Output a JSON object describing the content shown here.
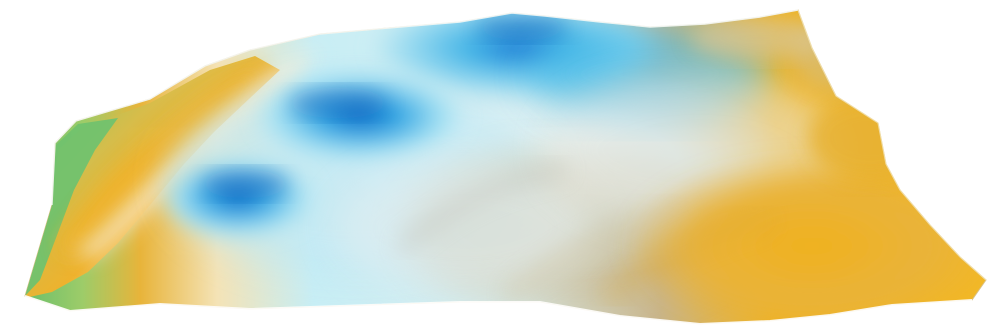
{
  "image": {
    "kind": "3D terrain surface render",
    "palette": {
      "background": "#ffffff",
      "low_green": "#6bbf6a",
      "mid_yellow": "#e8b43a",
      "gold": "#f0b21e",
      "tan": "#c9b58a",
      "pale_cyan": "#c8eef5",
      "sky_blue": "#42b4e6",
      "deep_blue": "#1e72d2",
      "shadow_blue": "#1663c4"
    }
  }
}
